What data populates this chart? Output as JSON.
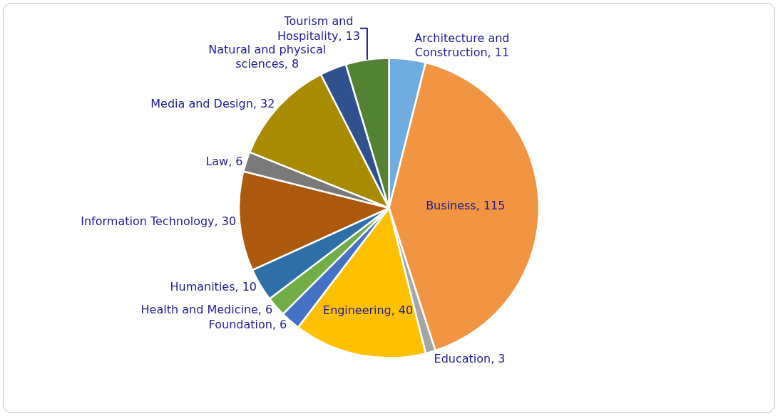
{
  "chart_data": {
    "type": "pie",
    "categories": [
      "Architecture and Construction",
      "Business",
      "Education",
      "Engineering",
      "Foundation",
      "Health and Medicine",
      "Humanities",
      "Information Technology",
      "Law",
      "Media and Design",
      "Natural and physical sciences",
      "Tourism and Hospitality"
    ],
    "values": [
      11,
      115,
      3,
      40,
      6,
      6,
      10,
      30,
      6,
      32,
      8,
      13
    ],
    "value_labels": [
      ", 11",
      ", 115",
      ", 3",
      ", 40",
      ", 6",
      ", 6",
      ", 10",
      ", 30",
      ", 6",
      ", 32",
      ", 8",
      ", 13"
    ],
    "colors": [
      "#6fade0",
      "#f19543",
      "#a5a5a5",
      "#ffc000",
      "#4472c4",
      "#70ad47",
      "#2e6fa8",
      "#ae5a0e",
      "#7a7a7a",
      "#a98b00",
      "#2f528f",
      "#548235"
    ],
    "legend": false
  }
}
